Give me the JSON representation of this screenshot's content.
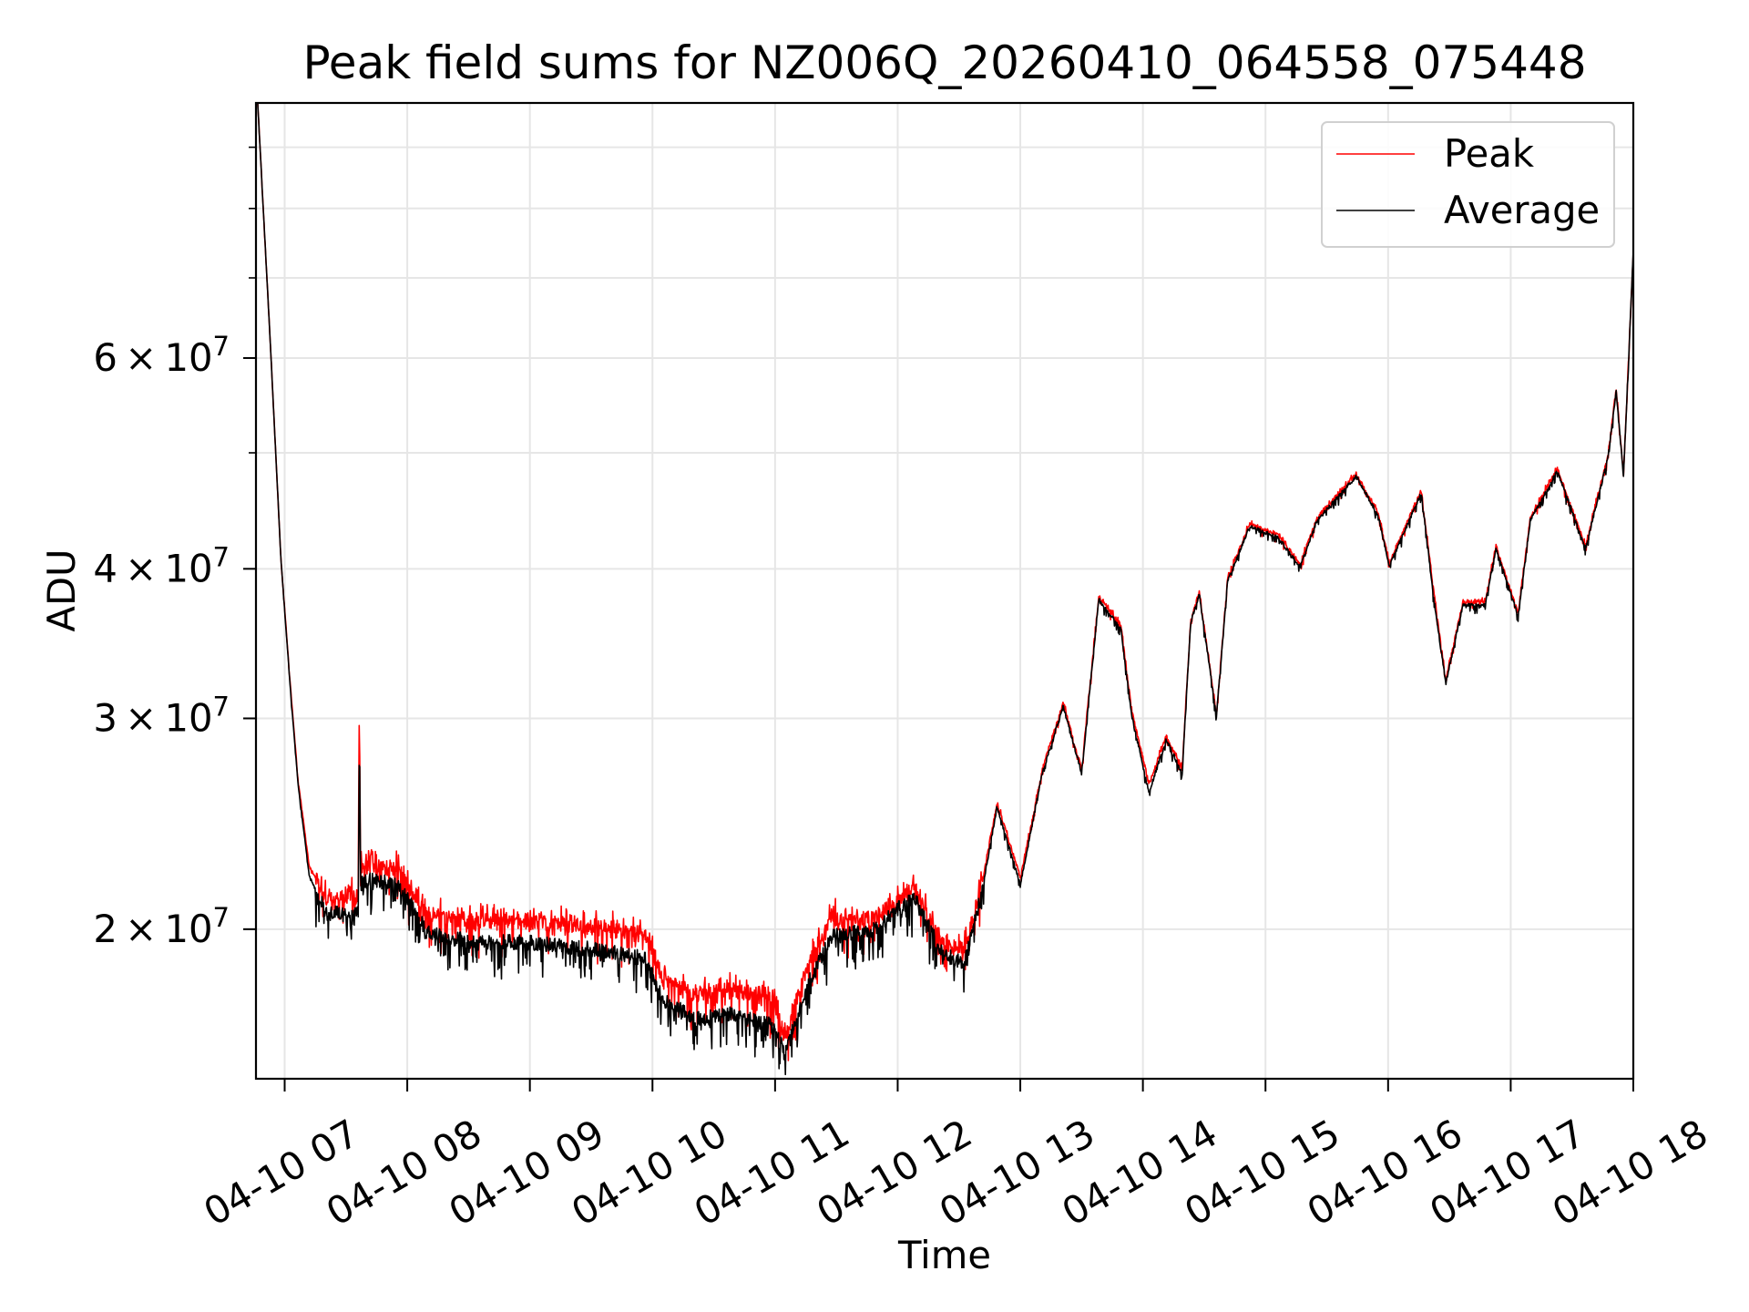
{
  "chart_data": {
    "type": "line",
    "title": "Peak field sums for NZ006Q_20260410_064558_075448",
    "xlabel": "Time",
    "ylabel": "ADU",
    "yscale": "log",
    "x_unit": "hours on 2026-04-10",
    "xlim": [
      6.766,
      18.0
    ],
    "ylim": [
      15000000,
      98000000
    ],
    "grid": true,
    "legend": {
      "placement": "top-right",
      "entries": [
        "Peak",
        "Average"
      ]
    },
    "x_ticks": [
      {
        "value": 7,
        "label": "04-10 07"
      },
      {
        "value": 8,
        "label": "04-10 08"
      },
      {
        "value": 9,
        "label": "04-10 09"
      },
      {
        "value": 10,
        "label": "04-10 10"
      },
      {
        "value": 11,
        "label": "04-10 11"
      },
      {
        "value": 12,
        "label": "04-10 12"
      },
      {
        "value": 13,
        "label": "04-10 13"
      },
      {
        "value": 14,
        "label": "04-10 14"
      },
      {
        "value": 15,
        "label": "04-10 15"
      },
      {
        "value": 16,
        "label": "04-10 16"
      },
      {
        "value": 17,
        "label": "04-10 17"
      },
      {
        "value": 18,
        "label": "04-10 18"
      }
    ],
    "y_ticks": [
      {
        "value": 20000000,
        "mantissa": "2",
        "base": "10",
        "exponent": "7"
      },
      {
        "value": 30000000,
        "mantissa": "3",
        "base": "10",
        "exponent": "7"
      },
      {
        "value": 40000000,
        "mantissa": "4",
        "base": "10",
        "exponent": "7"
      },
      {
        "value": 60000000,
        "mantissa": "6",
        "base": "10",
        "exponent": "7"
      }
    ],
    "y_minor_ticks": [
      50000000,
      70000000,
      80000000,
      90000000
    ],
    "x": [
      6.78,
      6.88,
      6.97,
      7.05,
      7.11,
      7.2,
      7.34,
      7.52,
      7.6,
      7.61,
      7.62,
      7.7,
      7.93,
      8.16,
      8.53,
      8.98,
      9.44,
      9.94,
      10.08,
      10.35,
      10.63,
      10.99,
      11.08,
      11.26,
      11.45,
      11.81,
      12.13,
      12.36,
      12.54,
      12.68,
      12.81,
      13.0,
      13.18,
      13.35,
      13.5,
      13.64,
      13.82,
      13.91,
      14.05,
      14.19,
      14.32,
      14.39,
      14.46,
      14.6,
      14.69,
      14.87,
      15.1,
      15.28,
      15.42,
      15.74,
      15.92,
      16.01,
      16.27,
      16.38,
      16.47,
      16.61,
      16.79,
      16.88,
      17.06,
      17.16,
      17.38,
      17.61,
      17.79,
      17.86,
      17.92,
      18.0
    ],
    "series": [
      {
        "name": "Peak",
        "color": "#ff0000",
        "values": [
          98100000,
          62600000,
          40700000,
          31600000,
          26600000,
          22600000,
          21200000,
          21300000,
          21300000,
          32000000,
          22500000,
          22600000,
          22400000,
          20600000,
          20300000,
          20300000,
          20100000,
          19800000,
          18200000,
          17600000,
          17800000,
          17500000,
          16200000,
          18600000,
          20400000,
          20400000,
          21600000,
          19500000,
          19200000,
          21600000,
          25500000,
          22100000,
          27200000,
          30900000,
          27200000,
          37900000,
          35900000,
          30400000,
          26400000,
          29000000,
          27200000,
          36300000,
          38300000,
          30200000,
          39200000,
          43600000,
          42700000,
          40300000,
          44100000,
          48000000,
          44500000,
          40400000,
          46500000,
          37700000,
          32300000,
          37500000,
          37500000,
          41800000,
          36700000,
          44100000,
          48500000,
          41800000,
          49600000,
          56500000,
          47900000,
          73700000
        ]
      },
      {
        "name": "Average",
        "color": "#000000",
        "values": [
          98100000,
          62600000,
          40700000,
          31400000,
          26400000,
          22200000,
          20600000,
          20600000,
          20700000,
          29400000,
          21800000,
          22000000,
          21800000,
          19900000,
          19500000,
          19500000,
          19300000,
          18900000,
          17500000,
          16800000,
          17000000,
          16600000,
          15700000,
          17900000,
          19700000,
          20000000,
          21300000,
          19100000,
          18700000,
          21300000,
          25300000,
          21800000,
          27000000,
          30700000,
          27000000,
          37700000,
          35700000,
          30100000,
          26000000,
          28800000,
          27000000,
          36100000,
          38100000,
          30100000,
          39000000,
          43400000,
          42500000,
          40200000,
          43900000,
          47800000,
          44300000,
          40200000,
          46300000,
          37300000,
          32100000,
          37300000,
          37300000,
          41600000,
          36500000,
          43900000,
          48300000,
          41600000,
          49400000,
          56200000,
          47800000,
          73700000
        ]
      }
    ]
  }
}
